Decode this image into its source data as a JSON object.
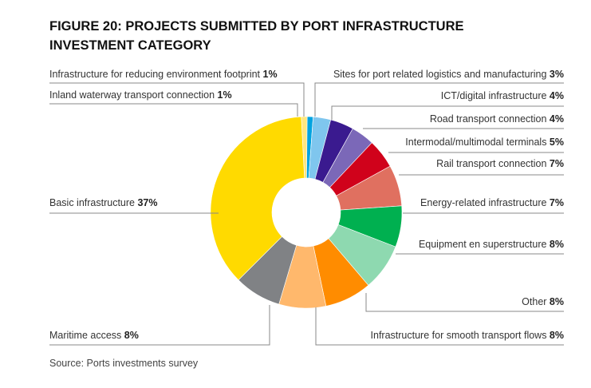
{
  "chart_data": {
    "type": "pie",
    "donut": true,
    "title": "FIGURE 20: PROJECTS SUBMITTED BY PORT INFRASTRUCTURE INVESTMENT CATEGORY",
    "title_lines": [
      "FIGURE 20: PROJECTS SUBMITTED BY PORT INFRASTRUCTURE",
      "INVESTMENT CATEGORY"
    ],
    "source": "Source: Ports investments survey",
    "unit": "%",
    "slices": [
      {
        "label": "Infrastructure for reducing environment footprint",
        "value": 1,
        "pct": "1%",
        "color": "#FFE680"
      },
      {
        "label": "Inland waterway transport connection",
        "value": 1,
        "pct": "1%",
        "color": "#00A3E0"
      },
      {
        "label": "Sites for port related logistics and manufacturing",
        "value": 3,
        "pct": "3%",
        "color": "#7FC6EE"
      },
      {
        "label": "ICT/digital infrastructure",
        "value": 4,
        "pct": "4%",
        "color": "#3A1A8F"
      },
      {
        "label": "Road transport connection",
        "value": 4,
        "pct": "4%",
        "color": "#7B68B8"
      },
      {
        "label": "Intermodal/multimodal terminals",
        "value": 5,
        "pct": "5%",
        "color": "#D0021B"
      },
      {
        "label": "Rail transport connection",
        "value": 7,
        "pct": "7%",
        "color": "#E07060"
      },
      {
        "label": "Energy-related infrastructure",
        "value": 7,
        "pct": "7%",
        "color": "#00B050"
      },
      {
        "label": "Equipment en superstructure",
        "value": 8,
        "pct": "8%",
        "color": "#8ED9B0"
      },
      {
        "label": "Other",
        "value": 8,
        "pct": "8%",
        "color": "#FF8C00"
      },
      {
        "label": "Infrastructure for smooth transport flows",
        "value": 8,
        "pct": "8%",
        "color": "#FFB86C"
      },
      {
        "label": "Maritime access",
        "value": 8,
        "pct": "8%",
        "color": "#808285"
      },
      {
        "label": "Basic infrastructure",
        "value": 37,
        "pct": "37%",
        "color": "#FFDA00"
      }
    ]
  }
}
